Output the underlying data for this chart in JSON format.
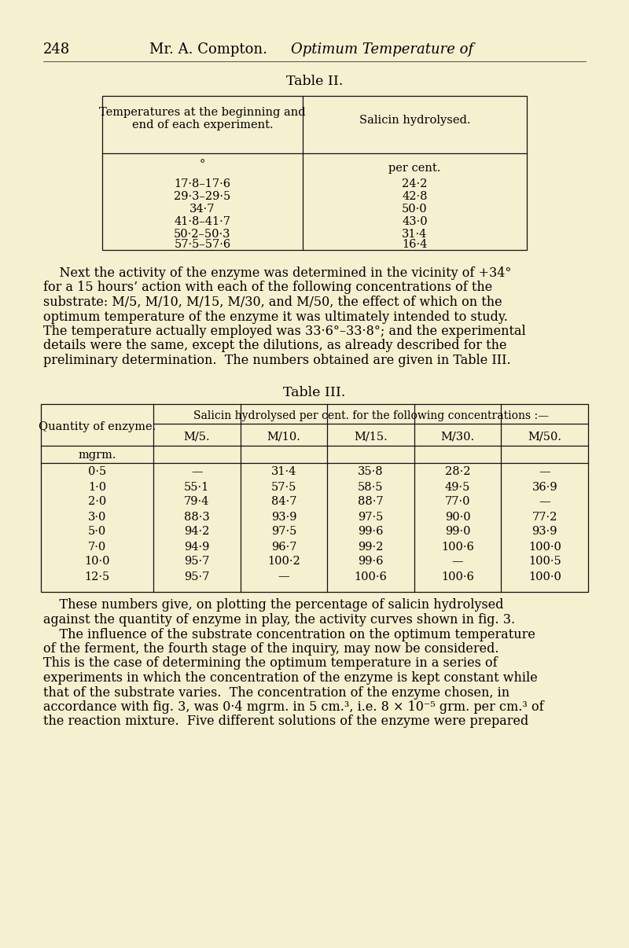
{
  "bg_color": "#f5f0d0",
  "page_number": "248",
  "header_roman": "Mr. A. Compton.",
  "header_italic": "Optimum Temperature of",
  "table2_title": "Table II.",
  "table2_col1_header_line1": "Temperatures at the beginning and",
  "table2_col1_header_line2": "end of each experiment.",
  "table2_col2_header": "Salicin hydrolysed.",
  "table2_col1_subheader": "°",
  "table2_col2_subheader": "per cent.",
  "table2_rows": [
    [
      "17·8–17·6",
      "24·2"
    ],
    [
      "29·3–29·5",
      "42·8"
    ],
    [
      "34·7",
      "50·0"
    ],
    [
      "41·8–41·7",
      "43·0"
    ],
    [
      "50·2–50·3",
      "31·4"
    ],
    [
      "57·5–57·6",
      "16·4"
    ]
  ],
  "para1_lines": [
    "    Next the activity of the enzyme was determined in the vicinity of +34°",
    "for a 15 hours’ action with each of the following concentrations of the",
    "substrate: M/5, M/10, M/15, M/30, and M/50, the effect of which on the",
    "optimum temperature of the enzyme it was ultimately intended to study.",
    "The temperature actually employed was 33·6°–33·8°; and the experimental",
    "details were the same, except the dilutions, as already described for the",
    "preliminary determination.  The numbers obtained are given in Table III."
  ],
  "table3_title": "Table III.",
  "table3_col0_header": "Quantity of enzyme.",
  "table3_span_header": "Salicin hydrolysed per cent. for the following concentrations :—",
  "table3_subcols": [
    "M/5.",
    "M/10.",
    "M/15.",
    "M/30.",
    "M/50."
  ],
  "table3_qty_label": "mgrm.",
  "table3_rows": [
    [
      "0·5",
      "—",
      "31·4",
      "35·8",
      "28·2",
      "—"
    ],
    [
      "1·0",
      "55·1",
      "57·5",
      "58·5",
      "49·5",
      "36·9"
    ],
    [
      "2·0",
      "79·4",
      "84·7",
      "88·7",
      "77·0",
      "—"
    ],
    [
      "3·0",
      "88·3",
      "93·9",
      "97·5",
      "90·0",
      "77·2"
    ],
    [
      "5·0",
      "94·2",
      "97·5",
      "99·6",
      "99·0",
      "93·9"
    ],
    [
      "7·0",
      "94·9",
      "96·7",
      "99·2",
      "100·6",
      "100·0"
    ],
    [
      "10·0",
      "95·7",
      "100·2",
      "99·6",
      "—",
      "100·5"
    ],
    [
      "12·5",
      "95·7",
      "—",
      "100·6",
      "100·6",
      "100·0"
    ]
  ],
  "para2_lines": [
    "    These numbers give, on plotting the percentage of salicin hydrolysed",
    "against the quantity of enzyme in play, the activity curves shown in fig. 3.",
    "    The influence of the substrate concentration on the optimum temperature",
    "of the ferment, the fourth stage of the inquiry, may now be considered.",
    "This is the case of determining the optimum temperature in a series of",
    "experiments in which the concentration of the enzyme is kept constant while",
    "that of the substrate varies.  The concentration of the enzyme chosen, in",
    "accordance with fig. 3, was 0·4 mgrm. in 5 cm.³, i.e. 8 × 10⁻⁵ grm. per cm.³ of",
    "the reaction mixture.  Five different solutions of the enzyme were prepared"
  ]
}
